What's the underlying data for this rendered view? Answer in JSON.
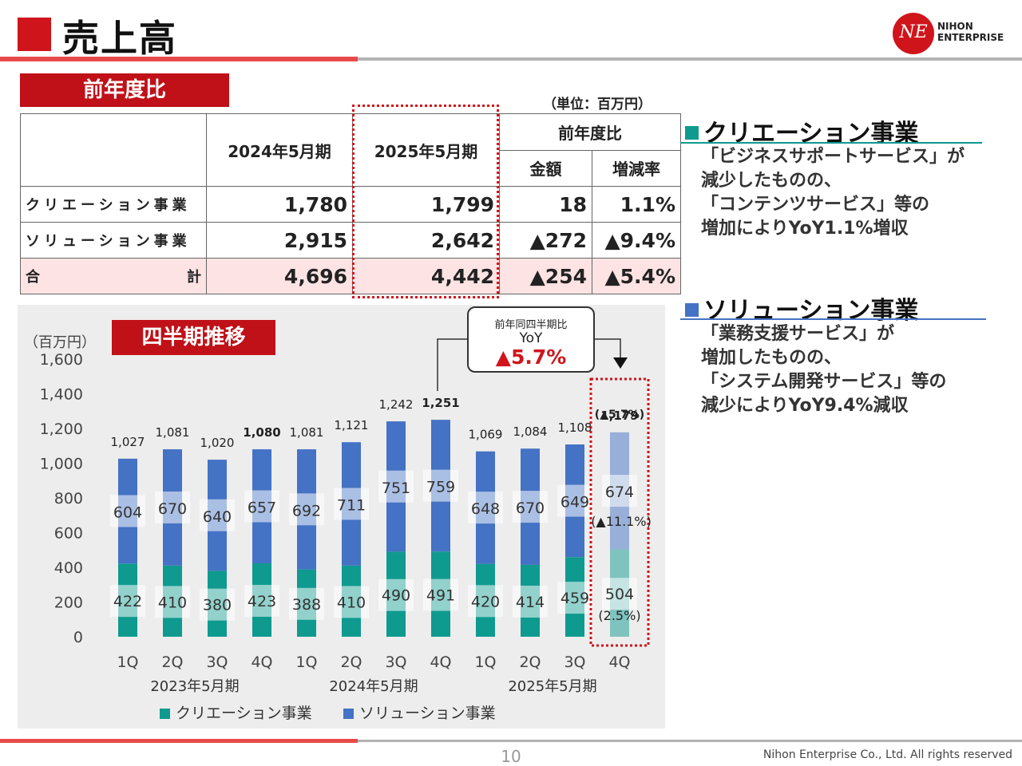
{
  "header": {
    "title": "売上高",
    "logo_mark": "NE",
    "logo_line1": "NIHON",
    "logo_line2": "ENTERPRISE"
  },
  "yoy_section": {
    "label": "前年度比",
    "unit": "（単位：百万円）",
    "columns": {
      "fy2024": "2024年5月期",
      "fy2025": "2025年5月期",
      "yoy": "前年度比",
      "amount": "金額",
      "rate": "増減率"
    },
    "rows": [
      {
        "segment": "クリエーション事業",
        "fy2024": "1,780",
        "fy2025": "1,799",
        "amount": "18",
        "rate": "1.1%"
      },
      {
        "segment": "ソリューション事業",
        "fy2024": "2,915",
        "fy2025": "2,642",
        "amount": "▲272",
        "rate": "▲9.4%"
      }
    ],
    "total": {
      "label_left": "合",
      "label_right": "計",
      "fy2024": "4,696",
      "fy2025": "4,442",
      "amount": "▲254",
      "rate": "▲5.4%"
    }
  },
  "notes": {
    "creation": {
      "title": "クリエーション事業",
      "color": "#0f9a8f",
      "lines": [
        "「ビジネスサポートサービス」が",
        "減少したものの、",
        "「コンテンツサービス」等の",
        "増加によりYoY1.1%増収"
      ]
    },
    "solution": {
      "title": "ソリューション事業",
      "color": "#4472c4",
      "lines": [
        "「業務支援サービス」が",
        "増加したものの、",
        "「システム開発サービス」等の",
        "減少によりYoY9.4%減収"
      ]
    }
  },
  "chart_section": {
    "label": "四半期推移",
    "callout": {
      "line1": "前年同四半期比",
      "line2": "YoY",
      "value": "▲5.7%"
    }
  },
  "chart_data": {
    "type": "bar",
    "stacked": true,
    "unit_label": "（百万円）",
    "ylim": [
      0,
      1600
    ],
    "yticks": [
      "0",
      "200",
      "400",
      "600",
      "800",
      "1,000",
      "1,200",
      "1,400",
      "1,600"
    ],
    "categories": [
      "1Q",
      "2Q",
      "3Q",
      "4Q",
      "1Q",
      "2Q",
      "3Q",
      "4Q",
      "1Q",
      "2Q",
      "3Q",
      "4Q"
    ],
    "periods": [
      {
        "label": "2023年5月期",
        "quarters": 4
      },
      {
        "label": "2024年5月期",
        "quarters": 4
      },
      {
        "label": "2025年5月期",
        "quarters": 4
      }
    ],
    "series": [
      {
        "name": "クリエーション事業",
        "color": "#0f9a8f",
        "values": [
          422,
          410,
          380,
          423,
          388,
          410,
          490,
          491,
          420,
          414,
          459,
          504
        ]
      },
      {
        "name": "ソリューション事業",
        "color": "#4472c4",
        "values": [
          604,
          670,
          640,
          657,
          692,
          711,
          751,
          759,
          648,
          670,
          649,
          674
        ]
      }
    ],
    "totals": [
      "1,027",
      "1,081",
      "1,020",
      "1,080",
      "1,081",
      "1,121",
      "1,242",
      "1,251",
      "1,069",
      "1,084",
      "1,108",
      "1,179"
    ],
    "bold_totals": [
      3,
      7,
      11
    ],
    "highlight_index": 11,
    "highlight_annotations": {
      "total_yoy": "(▲5.7%)",
      "solution_yoy": "(▲11.1%)",
      "creation_yoy": "(2.5%)"
    },
    "legend_position": "bottom"
  },
  "footer": {
    "page": "10",
    "copyright": "Nihon Enterprise Co., Ltd. All rights reserved"
  }
}
